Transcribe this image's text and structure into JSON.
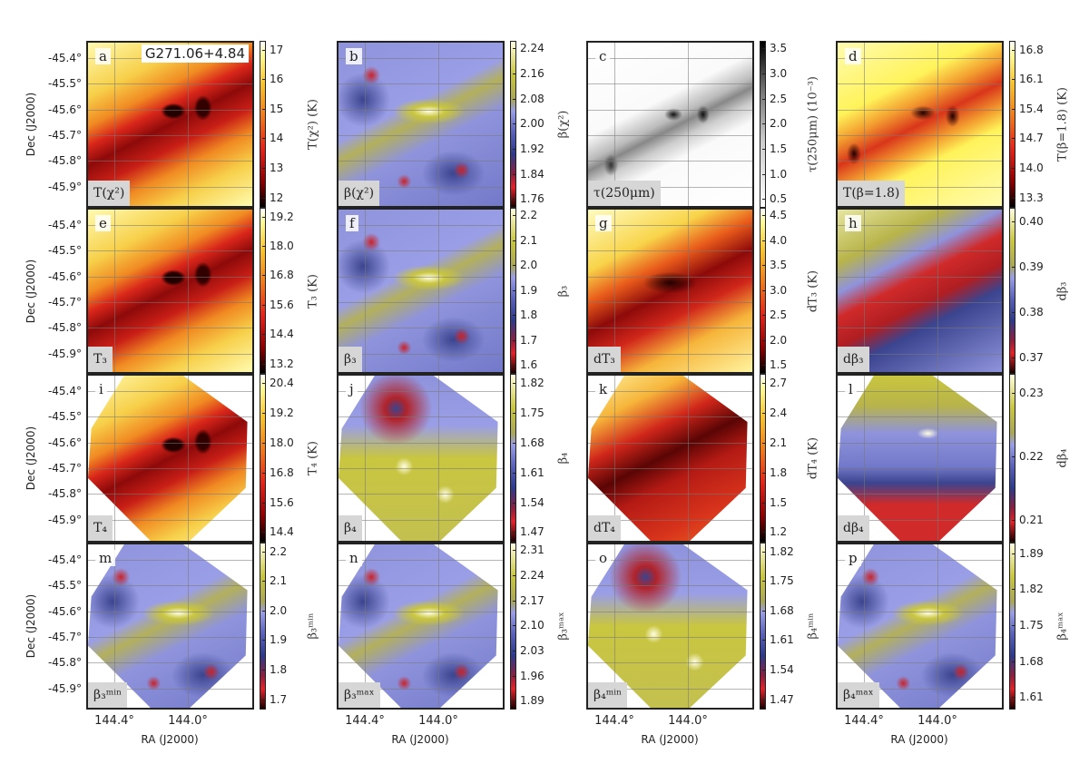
{
  "chart_data": {
    "type": "heatmap",
    "title": "G271.06+4.84",
    "xlabel": "RA (J2000)",
    "ylabel": "Dec (J2000)",
    "x_ticks": [
      "144.4°",
      "144.0°"
    ],
    "y_ticks": [
      "-45.4°",
      "-45.5°",
      "-45.6°",
      "-45.7°",
      "-45.8°",
      "-45.9°"
    ],
    "grid": true,
    "panels": [
      {
        "letter": "a",
        "label": "T(χ²)",
        "cbar_label": "T(χ²) (K)",
        "cmap": "heat",
        "ticks": [
          "12",
          "13",
          "14",
          "15",
          "16",
          "17"
        ]
      },
      {
        "letter": "b",
        "label": "β(χ²)",
        "cbar_label": "β(χ²)",
        "cmap": "beta",
        "ticks": [
          "1.76",
          "1.84",
          "1.92",
          "2.00",
          "2.08",
          "2.16",
          "2.24"
        ]
      },
      {
        "letter": "c",
        "label": "τ(250μm)",
        "cbar_label": "τ(250μm) (10⁻³)",
        "cmap": "gray",
        "ticks": [
          "0.5",
          "1.0",
          "1.5",
          "2.0",
          "2.5",
          "3.0",
          "3.5"
        ]
      },
      {
        "letter": "d",
        "label": "T(β=1.8)",
        "cbar_label": "T(β=1.8) (K)",
        "cmap": "heat",
        "ticks": [
          "13.3",
          "14.0",
          "14.7",
          "15.4",
          "16.1",
          "16.8"
        ]
      },
      {
        "letter": "e",
        "label": "T₃",
        "cbar_label": "T₃ (K)",
        "cmap": "heat",
        "ticks": [
          "13.2",
          "14.4",
          "15.6",
          "16.8",
          "18.0",
          "19.2"
        ]
      },
      {
        "letter": "f",
        "label": "β₃",
        "cbar_label": "β₃",
        "cmap": "beta",
        "ticks": [
          "1.6",
          "1.7",
          "1.8",
          "1.9",
          "2.0",
          "2.1",
          "2.2"
        ]
      },
      {
        "letter": "g",
        "label": "dT₃",
        "cbar_label": "dT₃ (K)",
        "cmap": "heat",
        "ticks": [
          "1.5",
          "2.0",
          "2.5",
          "3.0",
          "3.5",
          "4.0",
          "4.5"
        ]
      },
      {
        "letter": "h",
        "label": "dβ₃",
        "cbar_label": "dβ₃",
        "cmap": "beta",
        "ticks": [
          "0.37",
          "0.38",
          "0.39",
          "0.40"
        ]
      },
      {
        "letter": "i",
        "label": "T₄",
        "cbar_label": "T₄ (K)",
        "cmap": "heat",
        "ticks": [
          "14.4",
          "15.6",
          "16.8",
          "18.0",
          "19.2",
          "20.4"
        ]
      },
      {
        "letter": "j",
        "label": "β₄",
        "cbar_label": "β₄",
        "cmap": "beta",
        "ticks": [
          "1.47",
          "1.54",
          "1.61",
          "1.68",
          "1.75",
          "1.82"
        ]
      },
      {
        "letter": "k",
        "label": "dT₄",
        "cbar_label": "dT₄ (K)",
        "cmap": "heat",
        "ticks": [
          "1.2",
          "1.5",
          "1.8",
          "2.1",
          "2.4",
          "2.7"
        ]
      },
      {
        "letter": "l",
        "label": "dβ₄",
        "cbar_label": "dβ₄",
        "cmap": "beta",
        "ticks": [
          "0.21",
          "0.22",
          "0.23"
        ]
      },
      {
        "letter": "m",
        "label": "β₃ᵐⁱⁿ",
        "cbar_label": "β₃ᵐⁱⁿ",
        "cmap": "beta",
        "ticks": [
          "1.7",
          "1.8",
          "1.9",
          "2.0",
          "2.1",
          "2.2"
        ]
      },
      {
        "letter": "n",
        "label": "β₃ᵐᵃˣ",
        "cbar_label": "β₃ᵐᵃˣ",
        "cmap": "beta",
        "ticks": [
          "1.89",
          "1.96",
          "2.03",
          "2.10",
          "2.17",
          "2.24",
          "2.31"
        ]
      },
      {
        "letter": "o",
        "label": "β₄ᵐⁱⁿ",
        "cbar_label": "β₄ᵐⁱⁿ",
        "cmap": "beta",
        "ticks": [
          "1.47",
          "1.54",
          "1.61",
          "1.68",
          "1.75",
          "1.82"
        ]
      },
      {
        "letter": "p",
        "label": "β₄ᵐᵃˣ",
        "cbar_label": "β₄ᵐᵃˣ",
        "cmap": "beta",
        "ticks": [
          "1.61",
          "1.68",
          "1.75",
          "1.82",
          "1.89"
        ]
      }
    ]
  }
}
